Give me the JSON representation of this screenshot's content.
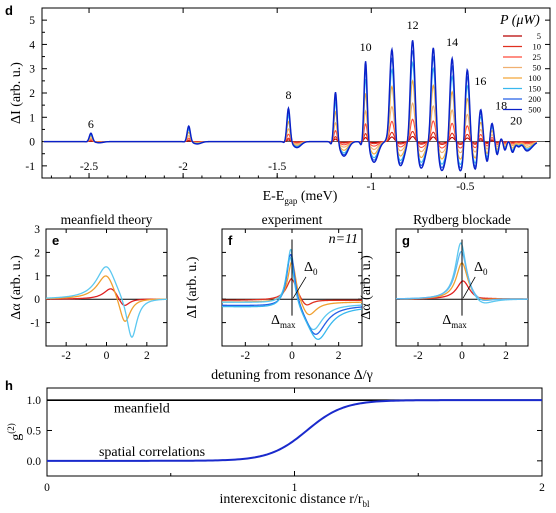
{
  "colors": {
    "series": [
      "#7a0000",
      "#b80000",
      "#e03020",
      "#ff4a3a",
      "#f0b070",
      "#f4a83a",
      "#38b8ee",
      "#2460e6",
      "#0a20c8"
    ],
    "model": {
      "p1": "#e02020",
      "p2": "#f0a030",
      "p3": "#5cc8f0",
      "p4": "#60b8f0"
    },
    "g2": "#1a2acc"
  },
  "chart_data": [
    {
      "panel": "d",
      "type": "line",
      "xlabel": "E-E",
      "xlabel_sub": "gap",
      "xlabel_unit": " (meV)",
      "ylabel": "ΔI (arb. u.)",
      "xlim": [
        -2.75,
        -0.05
      ],
      "ylim": [
        -1.5,
        5.5
      ],
      "yticks": [
        -1,
        0,
        1,
        2,
        3,
        4,
        5
      ],
      "xticks": [
        -2.5,
        -2,
        -1.5,
        -1,
        -0.5
      ],
      "xtick_labels": [
        "-2.5",
        "",
        "-1.5",
        "-1",
        "-0.5"
      ],
      "xtick_inner": [
        -2,
        -1.5
      ],
      "xtick_inner_labels": [
        "-2",
        ""
      ],
      "legend_title": "P (μW)",
      "legend_position": "top-right",
      "series": [
        {
          "name": "5",
          "scale": 0.05
        },
        {
          "name": "10",
          "scale": 0.1
        },
        {
          "name": "25",
          "scale": 0.22
        },
        {
          "name": "50",
          "scale": 0.38
        },
        {
          "name": "100",
          "scale": 0.6
        },
        {
          "name": "150",
          "scale": 0.78
        },
        {
          "name": "200",
          "scale": 0.9
        },
        {
          "name": "500",
          "scale": 1.0
        }
      ],
      "peaks": [
        {
          "n": "6",
          "x": -2.49,
          "amp": 0.35,
          "depth": 0.05
        },
        {
          "x": -1.97,
          "amp": 0.65,
          "depth": 0.1
        },
        {
          "n": "8",
          "x": -1.44,
          "amp": 1.4,
          "depth": 0.25
        },
        {
          "x": -1.19,
          "amp": 2.1,
          "depth": 0.6
        },
        {
          "n": "10",
          "x": -1.03,
          "amp": 3.4,
          "depth": 0.85
        },
        {
          "x": -0.89,
          "amp": 3.9,
          "depth": 1.0
        },
        {
          "n": "12",
          "x": -0.78,
          "amp": 4.3,
          "depth": 1.1
        },
        {
          "x": -0.67,
          "amp": 4.0,
          "depth": 1.2
        },
        {
          "n": "14",
          "x": -0.57,
          "amp": 3.6,
          "depth": 1.25
        },
        {
          "x": -0.49,
          "amp": 3.4,
          "depth": 1.2
        },
        {
          "n": "16",
          "x": -0.42,
          "amp": 2.0,
          "depth": 1.0
        },
        {
          "x": -0.36,
          "amp": 1.6,
          "depth": 0.85
        },
        {
          "n": "18",
          "x": -0.31,
          "amp": 1.0,
          "depth": 0.6
        },
        {
          "x": -0.27,
          "amp": 0.7,
          "depth": 0.45
        },
        {
          "n": "20",
          "x": -0.23,
          "amp": 0.45,
          "depth": 0.3
        },
        {
          "x": -0.2,
          "amp": 0.3,
          "depth": 0.2
        }
      ]
    },
    {
      "panel": "e",
      "type": "line",
      "title": "meanfield theory",
      "ylabel": "Δα (arb. u.)",
      "xlim": [
        -3,
        3
      ],
      "ylim": [
        -2,
        3
      ],
      "yticks": [
        -1,
        0,
        1,
        2,
        3
      ],
      "xticks": [
        -2,
        0,
        2
      ]
    },
    {
      "panel": "f",
      "type": "line",
      "title": "experiment",
      "ylabel": "ΔI (arb. u.)",
      "xlim": [
        -3,
        3
      ],
      "xticks": [
        -2,
        0,
        2
      ],
      "annotation_n": "n=11",
      "annotations": [
        "Δ0",
        "Δmax"
      ]
    },
    {
      "panel": "g",
      "type": "line",
      "title": "Rydberg blockade",
      "ylabel": "Δα (arb. u.)",
      "xlim": [
        -3,
        3
      ],
      "xticks": [
        -2,
        0,
        2
      ],
      "annotations": [
        "Δ0",
        "Δmax"
      ]
    },
    {
      "panel": "h",
      "type": "line",
      "xlabel": "interexcitonic distance r/r",
      "xlabel_sub": "bl",
      "ylabel": "g",
      "ylabel_sup": "(2)",
      "xlim": [
        0,
        2
      ],
      "ylim": [
        -0.25,
        1.2
      ],
      "yticks": [
        0.0,
        0.5,
        1.0
      ],
      "ytick_labels": [
        "0.0",
        "0.5",
        "1.0"
      ],
      "xticks": [
        0,
        1,
        2
      ],
      "series": [
        {
          "name": "meanfield",
          "values": "constant 1.0"
        },
        {
          "name": "spatial correlations",
          "values": "0 → 1, midpoint r/r_bl ≈ 1.05"
        }
      ]
    }
  ],
  "shared": {
    "detuning_label": "detuning from resonance Δ/γ"
  },
  "labels": {
    "d": "d",
    "e": "e",
    "f": "f",
    "g": "g",
    "h": "h"
  }
}
